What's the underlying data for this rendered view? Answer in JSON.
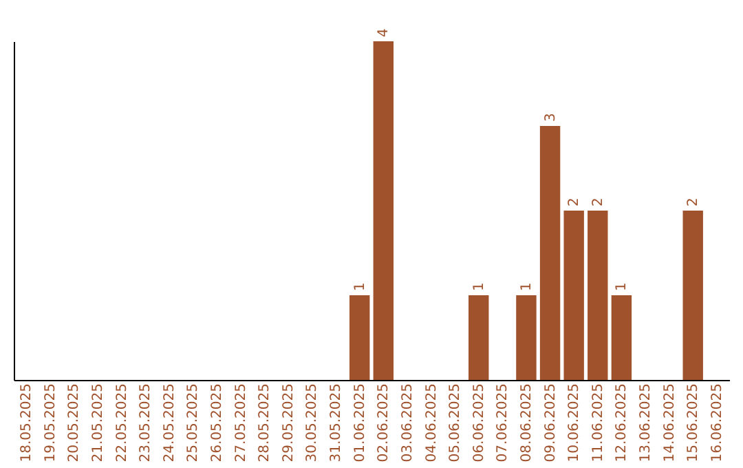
{
  "chart_data": {
    "type": "bar",
    "categories": [
      "18.05.2025",
      "19.05.2025",
      "20.05.2025",
      "21.05.2025",
      "22.05.2025",
      "23.05.2025",
      "24.05.2025",
      "25.05.2025",
      "26.05.2025",
      "27.05.2025",
      "28.05.2025",
      "29.05.2025",
      "30.05.2025",
      "31.05.2025",
      "01.06.2025",
      "02.06.2025",
      "03.06.2025",
      "04.06.2025",
      "05.06.2025",
      "06.06.2025",
      "07.06.2025",
      "08.06.2025",
      "09.06.2025",
      "10.06.2025",
      "11.06.2025",
      "12.06.2025",
      "13.06.2025",
      "14.06.2025",
      "15.06.2025",
      "16.06.2025"
    ],
    "values": [
      null,
      null,
      null,
      null,
      null,
      null,
      null,
      null,
      null,
      null,
      null,
      null,
      null,
      null,
      1,
      4,
      null,
      null,
      null,
      1,
      null,
      1,
      3,
      2,
      2,
      1,
      null,
      null,
      2,
      null
    ],
    "color": "#a0522d",
    "data_labels": true,
    "tick_labels": "x",
    "grid": false
  }
}
